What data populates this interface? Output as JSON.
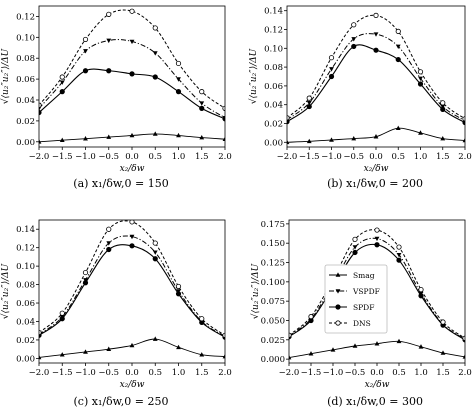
{
  "figure": {
    "subfigures": [
      {
        "caption": "(a)  x₁/δw,0 = 150"
      },
      {
        "caption": "(b)  x₁/δw,0 = 200"
      },
      {
        "caption": "(c)  x₁/δw,0 = 250"
      },
      {
        "caption": "(d)  x₁/δw,0 = 300"
      }
    ]
  },
  "chart_data": [
    {
      "type": "line",
      "caption": "(a)  x₁/δw,0 = 150",
      "xlabel": "x₂/δw",
      "ylabel": "√⟨u₂″u₂″⟩/ΔU",
      "xlim": [
        -2.0,
        2.0
      ],
      "ylim": [
        -0.005,
        0.13
      ],
      "xticks": [
        "−2.0",
        "−1.5",
        "−1.0",
        "−0.5",
        "0.0",
        "0.5",
        "1.0",
        "1.5",
        "2.0"
      ],
      "yticks": [
        "0.00",
        "0.02",
        "0.04",
        "0.06",
        "0.08",
        "0.10",
        "0.12"
      ],
      "legend": false,
      "series": [
        {
          "name": "Smag",
          "style": "solid-triangle",
          "x": [
            -2.0,
            -1.5,
            -1.0,
            -0.5,
            0.0,
            0.5,
            1.0,
            1.5,
            2.0
          ],
          "y": [
            0.0,
            0.0015,
            0.003,
            0.0045,
            0.006,
            0.0075,
            0.006,
            0.004,
            0.0025
          ]
        },
        {
          "name": "VSPDF",
          "style": "dashdot-triangle-down",
          "x": [
            -2.0,
            -1.5,
            -1.0,
            -0.5,
            0.0,
            0.5,
            1.0,
            1.5,
            2.0
          ],
          "y": [
            0.032,
            0.057,
            0.087,
            0.097,
            0.096,
            0.085,
            0.06,
            0.037,
            0.023
          ]
        },
        {
          "name": "SPDF",
          "style": "solid-filled-circle",
          "x": [
            -2.0,
            -1.5,
            -1.0,
            -0.5,
            0.0,
            0.5,
            1.0,
            1.5,
            2.0
          ],
          "y": [
            0.028,
            0.048,
            0.068,
            0.068,
            0.065,
            0.062,
            0.048,
            0.032,
            0.022
          ]
        },
        {
          "name": "DNS",
          "style": "dashed-open-circle",
          "x": [
            -2.0,
            -1.5,
            -1.0,
            -0.5,
            0.0,
            0.5,
            1.0,
            1.5,
            2.0
          ],
          "y": [
            0.035,
            0.062,
            0.098,
            0.122,
            0.125,
            0.109,
            0.075,
            0.048,
            0.032
          ]
        }
      ]
    },
    {
      "type": "line",
      "caption": "(b)  x₁/δw,0 = 200",
      "xlabel": "x₂/δw",
      "ylabel": "√⟨u₂″u₂″⟩/ΔU",
      "xlim": [
        -2.0,
        2.0
      ],
      "ylim": [
        -0.005,
        0.145
      ],
      "xticks": [
        "−2.0",
        "−1.5",
        "−1.0",
        "−0.5",
        "0.0",
        "0.5",
        "1.0",
        "1.5",
        "2.0"
      ],
      "yticks": [
        "0.00",
        "0.02",
        "0.04",
        "0.06",
        "0.08",
        "0.10",
        "0.12",
        "0.14"
      ],
      "legend": false,
      "series": [
        {
          "name": "Smag",
          "style": "solid-triangle",
          "x": [
            -2.0,
            -1.5,
            -1.0,
            -0.5,
            0.0,
            0.5,
            1.0,
            1.5,
            2.0
          ],
          "y": [
            0.0,
            0.001,
            0.0025,
            0.004,
            0.006,
            0.015,
            0.01,
            0.004,
            0.002
          ]
        },
        {
          "name": "VSPDF",
          "style": "dashdot-triangle-down",
          "x": [
            -2.0,
            -1.5,
            -1.0,
            -0.5,
            0.0,
            0.5,
            1.0,
            1.5,
            2.0
          ],
          "y": [
            0.024,
            0.042,
            0.078,
            0.11,
            0.115,
            0.102,
            0.068,
            0.038,
            0.023
          ]
        },
        {
          "name": "SPDF",
          "style": "solid-filled-circle",
          "x": [
            -2.0,
            -1.5,
            -1.0,
            -0.5,
            0.0,
            0.5,
            1.0,
            1.5,
            2.0
          ],
          "y": [
            0.022,
            0.038,
            0.07,
            0.102,
            0.098,
            0.088,
            0.062,
            0.035,
            0.021
          ]
        },
        {
          "name": "DNS",
          "style": "dashed-open-circle",
          "x": [
            -2.0,
            -1.5,
            -1.0,
            -0.5,
            0.0,
            0.5,
            1.0,
            1.5,
            2.0
          ],
          "y": [
            0.026,
            0.047,
            0.09,
            0.125,
            0.135,
            0.118,
            0.075,
            0.042,
            0.025
          ]
        }
      ]
    },
    {
      "type": "line",
      "caption": "(c)  x₁/δw,0 = 250",
      "xlabel": "x₂/δw",
      "ylabel": "√⟨u₂″u₂″⟩/ΔU",
      "xlim": [
        -2.0,
        2.0
      ],
      "ylim": [
        -0.005,
        0.15
      ],
      "xticks": [
        "−2.0",
        "−1.5",
        "−1.0",
        "−0.5",
        "0.0",
        "0.5",
        "1.0",
        "1.5",
        "2.0"
      ],
      "yticks": [
        "0.00",
        "0.02",
        "0.04",
        "0.06",
        "0.08",
        "0.10",
        "0.12",
        "0.14"
      ],
      "legend": false,
      "series": [
        {
          "name": "Smag",
          "style": "solid-triangle",
          "x": [
            -2.0,
            -1.5,
            -1.0,
            -0.5,
            0.0,
            0.5,
            1.0,
            1.5,
            2.0
          ],
          "y": [
            0.001,
            0.004,
            0.007,
            0.01,
            0.014,
            0.021,
            0.012,
            0.004,
            0.002
          ]
        },
        {
          "name": "VSPDF",
          "style": "dashdot-triangle-down",
          "x": [
            -2.0,
            -1.5,
            -1.0,
            -0.5,
            0.0,
            0.5,
            1.0,
            1.5,
            2.0
          ],
          "y": [
            0.026,
            0.045,
            0.085,
            0.125,
            0.132,
            0.115,
            0.073,
            0.04,
            0.024
          ]
        },
        {
          "name": "SPDF",
          "style": "solid-filled-circle",
          "x": [
            -2.0,
            -1.5,
            -1.0,
            -0.5,
            0.0,
            0.5,
            1.0,
            1.5,
            2.0
          ],
          "y": [
            0.025,
            0.043,
            0.082,
            0.118,
            0.122,
            0.108,
            0.07,
            0.039,
            0.023
          ]
        },
        {
          "name": "DNS",
          "style": "dashed-open-circle",
          "x": [
            -2.0,
            -1.5,
            -1.0,
            -0.5,
            0.0,
            0.5,
            1.0,
            1.5,
            2.0
          ],
          "y": [
            0.028,
            0.049,
            0.093,
            0.14,
            0.148,
            0.125,
            0.078,
            0.043,
            0.025
          ]
        }
      ]
    },
    {
      "type": "line",
      "caption": "(d)  x₁/δw,0 = 300",
      "xlabel": "x₂/δw",
      "ylabel": "√⟨u₂″u₂″⟩/ΔU",
      "xlim": [
        -2.0,
        2.0
      ],
      "ylim": [
        -0.005,
        0.18
      ],
      "xticks": [
        "−2.0",
        "−1.5",
        "−1.0",
        "−0.5",
        "0.0",
        "0.5",
        "1.0",
        "1.5",
        "2.0"
      ],
      "yticks": [
        "0.000",
        "0.025",
        "0.050",
        "0.075",
        "0.100",
        "0.125",
        "0.150",
        "0.175"
      ],
      "legend": true,
      "legend_placement": "center-left",
      "series": [
        {
          "name": "Smag",
          "style": "solid-triangle",
          "x": [
            -2.0,
            -1.5,
            -1.0,
            -0.5,
            0.0,
            0.5,
            1.0,
            1.5,
            2.0
          ],
          "y": [
            0.002,
            0.007,
            0.012,
            0.017,
            0.02,
            0.023,
            0.016,
            0.008,
            0.003
          ]
        },
        {
          "name": "VSPDF",
          "style": "dashdot-triangle-down",
          "x": [
            -2.0,
            -1.5,
            -1.0,
            -0.5,
            0.0,
            0.5,
            1.0,
            1.5,
            2.0
          ],
          "y": [
            0.03,
            0.052,
            0.097,
            0.145,
            0.156,
            0.135,
            0.085,
            0.045,
            0.026
          ]
        },
        {
          "name": "SPDF",
          "style": "solid-filled-circle",
          "x": [
            -2.0,
            -1.5,
            -1.0,
            -0.5,
            0.0,
            0.5,
            1.0,
            1.5,
            2.0
          ],
          "y": [
            0.029,
            0.05,
            0.093,
            0.138,
            0.148,
            0.128,
            0.082,
            0.044,
            0.025
          ]
        },
        {
          "name": "DNS",
          "style": "dashed-open-circle",
          "x": [
            -2.0,
            -1.5,
            -1.0,
            -0.5,
            0.0,
            0.5,
            1.0,
            1.5,
            2.0
          ],
          "y": [
            0.031,
            0.055,
            0.103,
            0.155,
            0.167,
            0.145,
            0.09,
            0.048,
            0.027
          ]
        }
      ]
    }
  ]
}
